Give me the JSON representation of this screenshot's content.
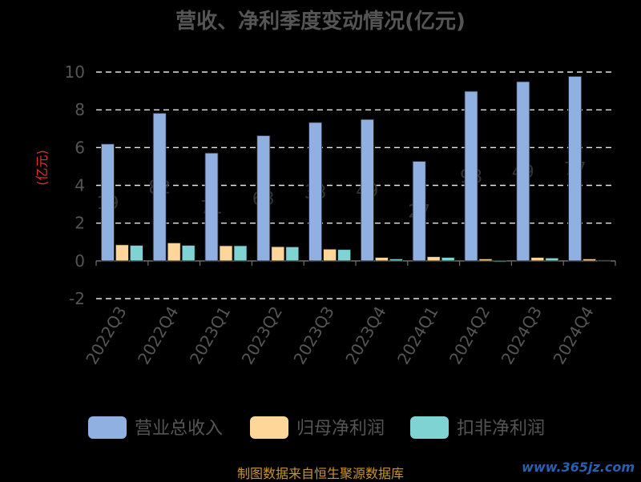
{
  "chart_data": {
    "type": "bar",
    "title": "营收、净利季度变动情况(亿元)",
    "ylabel": "(亿元)",
    "ylim": [
      -2,
      10
    ],
    "yticks": [
      10,
      8,
      6,
      4,
      2,
      0,
      -2
    ],
    "grid": true,
    "legend_position": "bottom",
    "categories": [
      "2022Q3",
      "2022Q4",
      "2023Q1",
      "2023Q2",
      "2023Q3",
      "2023Q4",
      "2024Q1",
      "2024Q2",
      "2024Q3",
      "2024Q4"
    ],
    "series": [
      {
        "name": "营业总收入",
        "color": "#8fb0e0",
        "values": [
          6.19,
          7.82,
          5.71,
          6.63,
          7.33,
          7.49,
          5.27,
          8.98,
          9.49,
          9.77
        ],
        "data_labels": [
          "19",
          "82",
          "71",
          "63",
          "33",
          "49",
          "27",
          "98",
          "49",
          "77"
        ]
      },
      {
        "name": "归母净利润",
        "color": "#ffd699",
        "values": [
          0.85,
          0.95,
          0.8,
          0.75,
          0.62,
          0.18,
          0.22,
          0.1,
          0.18,
          0.1
        ]
      },
      {
        "name": "扣非净利润",
        "color": "#7fd3d3",
        "values": [
          0.82,
          0.82,
          0.8,
          0.74,
          0.6,
          0.1,
          0.18,
          -0.05,
          0.15,
          0.03
        ]
      }
    ]
  },
  "source": "制图数据来自恒生聚源数据库",
  "watermark": "www.365jz.com"
}
